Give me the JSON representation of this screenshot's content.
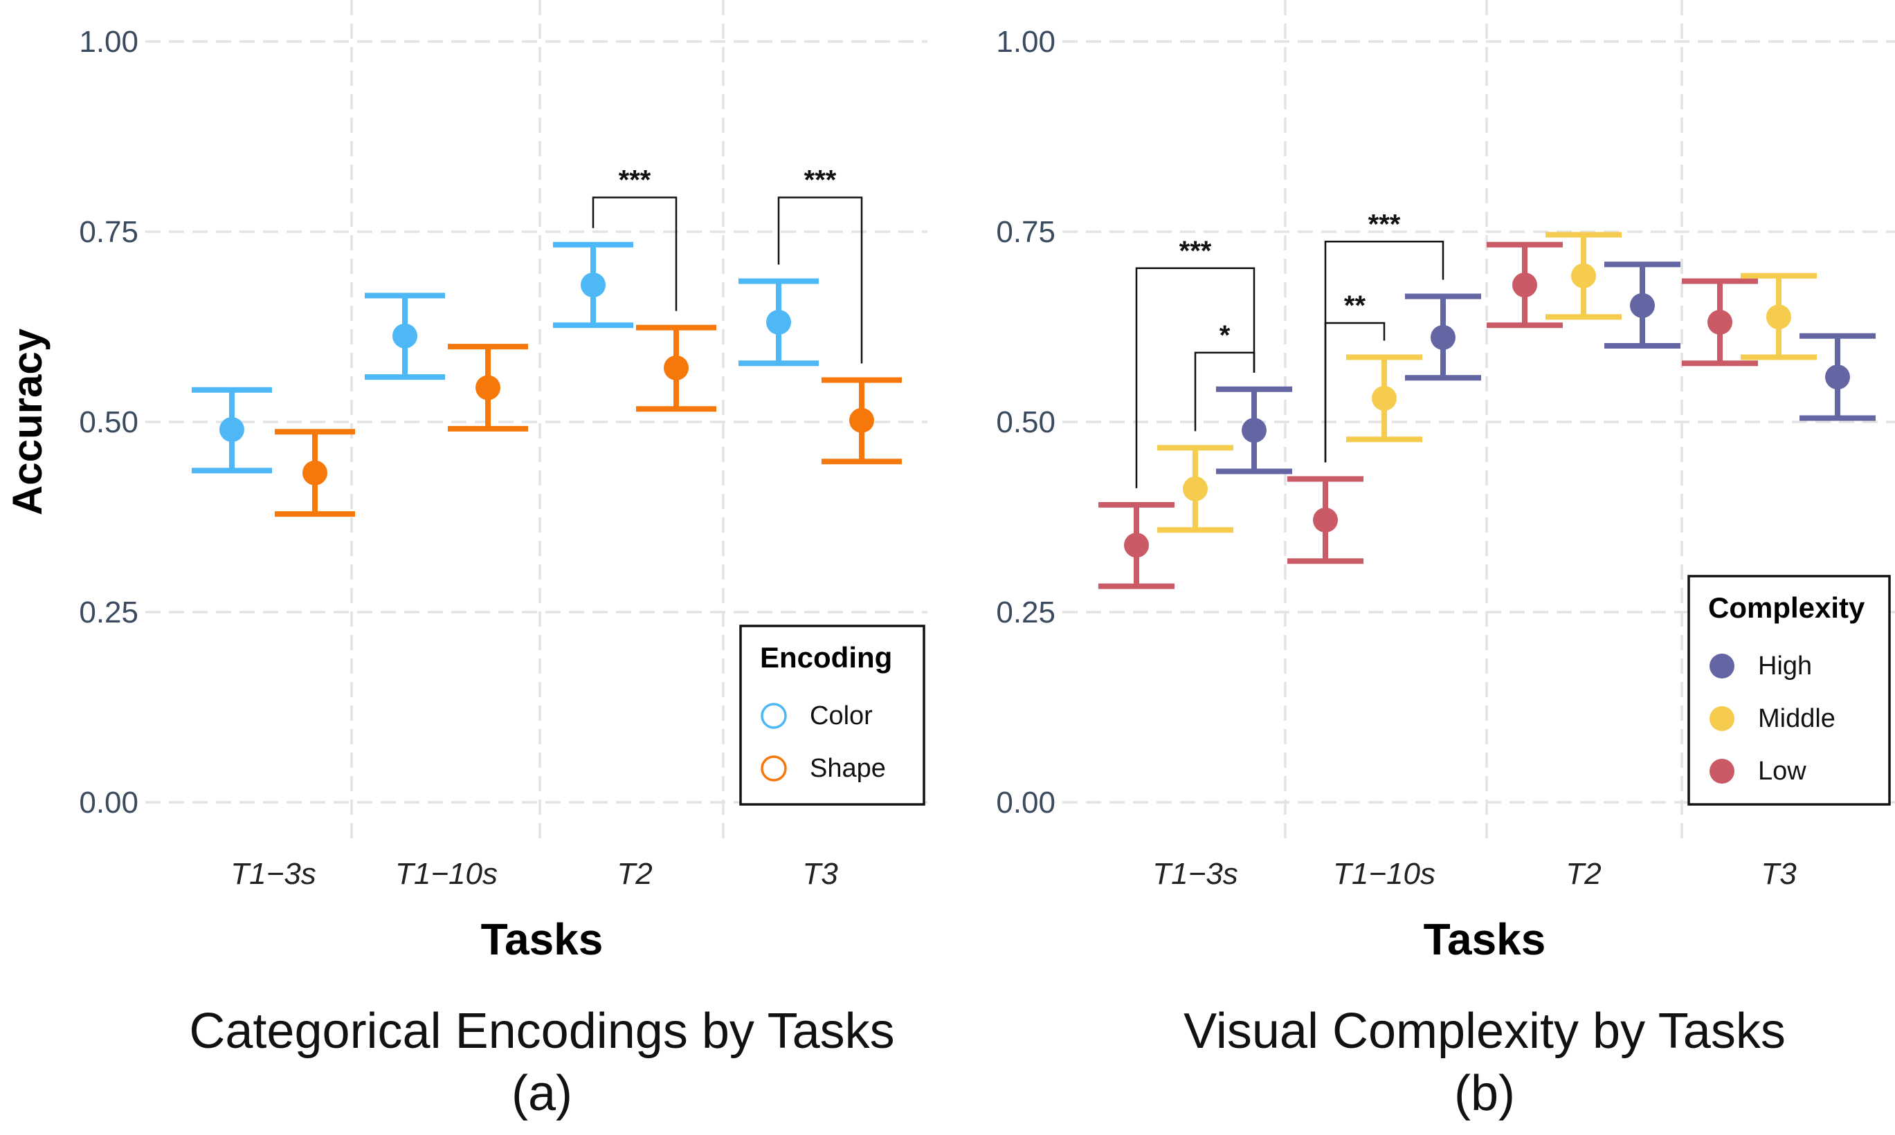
{
  "y_axis_label": "Accuracy",
  "chart_data": [
    {
      "type": "errorbar",
      "title": "Categorical Encodings by Tasks",
      "panel_label": "(a)",
      "xlabel": "Tasks",
      "ylabel": "Accuracy",
      "ylim": [
        0,
        1
      ],
      "yticks": [
        "0.00",
        "0.25",
        "0.50",
        "0.75",
        "1.00"
      ],
      "categories": [
        "T1−3s",
        "T1−10s",
        "T2",
        "T3"
      ],
      "legend": {
        "title": "Encoding",
        "position": "bottom-right",
        "marker": "hollow-circle"
      },
      "series": [
        {
          "name": "Color",
          "color": "#4DB8F5",
          "means": [
            0.49,
            0.613,
            0.68,
            0.631
          ],
          "lower": [
            0.436,
            0.559,
            0.627,
            0.577
          ],
          "upper": [
            0.542,
            0.666,
            0.733,
            0.685
          ]
        },
        {
          "name": "Shape",
          "color": "#F7780A",
          "means": [
            0.433,
            0.545,
            0.571,
            0.502
          ],
          "lower": [
            0.379,
            0.491,
            0.517,
            0.448
          ],
          "upper": [
            0.487,
            0.599,
            0.624,
            0.555
          ]
        }
      ],
      "significance": [
        {
          "category": 2,
          "from": 0,
          "to": 1,
          "label": "***",
          "level": 0.795
        },
        {
          "category": 3,
          "from": 0,
          "to": 1,
          "label": "***",
          "level": 0.795
        }
      ]
    },
    {
      "type": "errorbar",
      "title": "Visual Complexity by Tasks",
      "panel_label": "(b)",
      "xlabel": "Tasks",
      "ylabel": "",
      "ylim": [
        0,
        1
      ],
      "yticks": [
        "0.00",
        "0.25",
        "0.50",
        "0.75",
        "1.00"
      ],
      "categories": [
        "T1−3s",
        "T1−10s",
        "T2",
        "T3"
      ],
      "legend": {
        "title": "Complexity",
        "position": "bottom-right",
        "marker": "filled-circle",
        "order": [
          "High",
          "Middle",
          "Low"
        ]
      },
      "series": [
        {
          "name": "Low",
          "color": "#C95A66",
          "means": [
            0.338,
            0.371,
            0.68,
            0.631
          ],
          "lower": [
            0.284,
            0.317,
            0.627,
            0.577
          ],
          "upper": [
            0.391,
            0.425,
            0.733,
            0.685
          ]
        },
        {
          "name": "Middle",
          "color": "#F6CC4E",
          "means": [
            0.412,
            0.531,
            0.692,
            0.638
          ],
          "lower": [
            0.358,
            0.477,
            0.638,
            0.585
          ],
          "upper": [
            0.466,
            0.585,
            0.746,
            0.692
          ]
        },
        {
          "name": "High",
          "color": "#6466A3",
          "means": [
            0.489,
            0.611,
            0.653,
            0.559
          ],
          "lower": [
            0.435,
            0.558,
            0.6,
            0.505
          ],
          "upper": [
            0.543,
            0.665,
            0.707,
            0.613
          ]
        }
      ],
      "significance": [
        {
          "category": 0,
          "from": 0,
          "to": 2,
          "label": "***",
          "level": 0.702
        },
        {
          "category": 0,
          "from": 1,
          "to": 2,
          "label": "*",
          "level": 0.591
        },
        {
          "category": 1,
          "from": 0,
          "to": 2,
          "label": "***",
          "level": 0.737
        },
        {
          "category": 1,
          "from": 0,
          "to": 1,
          "label": "**",
          "level": 0.63
        }
      ]
    }
  ]
}
